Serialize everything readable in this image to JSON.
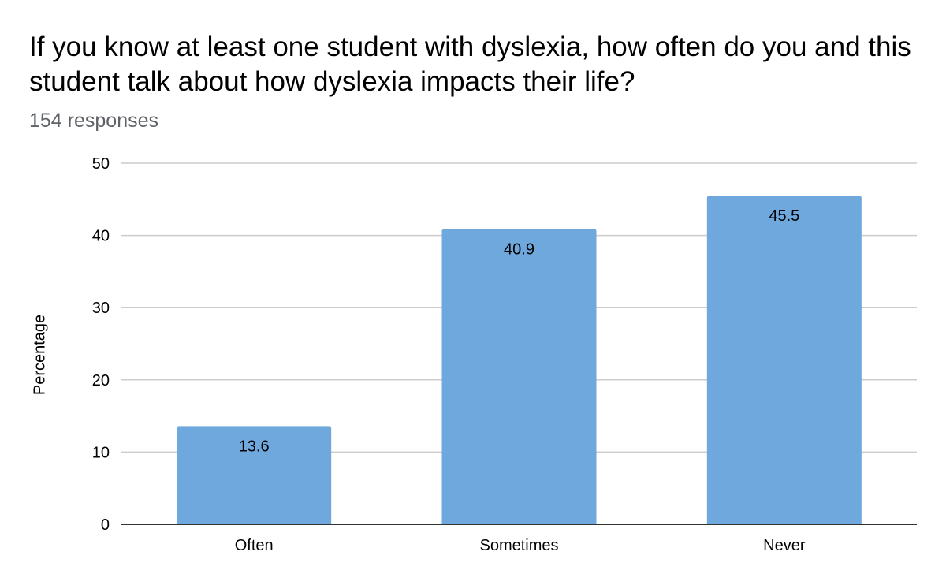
{
  "chart_data": {
    "type": "bar",
    "title": "If you know at least one student with dyslexia, how often do you and this student talk about how dyslexia impacts their life?",
    "subtitle": "154 responses",
    "xlabel": "",
    "ylabel": "Percentage",
    "categories": [
      "Often",
      "Sometimes",
      "Never"
    ],
    "values": [
      13.6,
      40.9,
      45.5
    ],
    "data_labels": [
      "13.6",
      "40.9",
      "45.5"
    ],
    "ylim": [
      0,
      50
    ],
    "yticks": [
      0,
      10,
      20,
      30,
      40,
      50
    ],
    "grid": true,
    "legend": "none",
    "colors": {
      "bar": "#6fa8dc",
      "grid": "#cccccc",
      "axis": "#333333"
    }
  }
}
